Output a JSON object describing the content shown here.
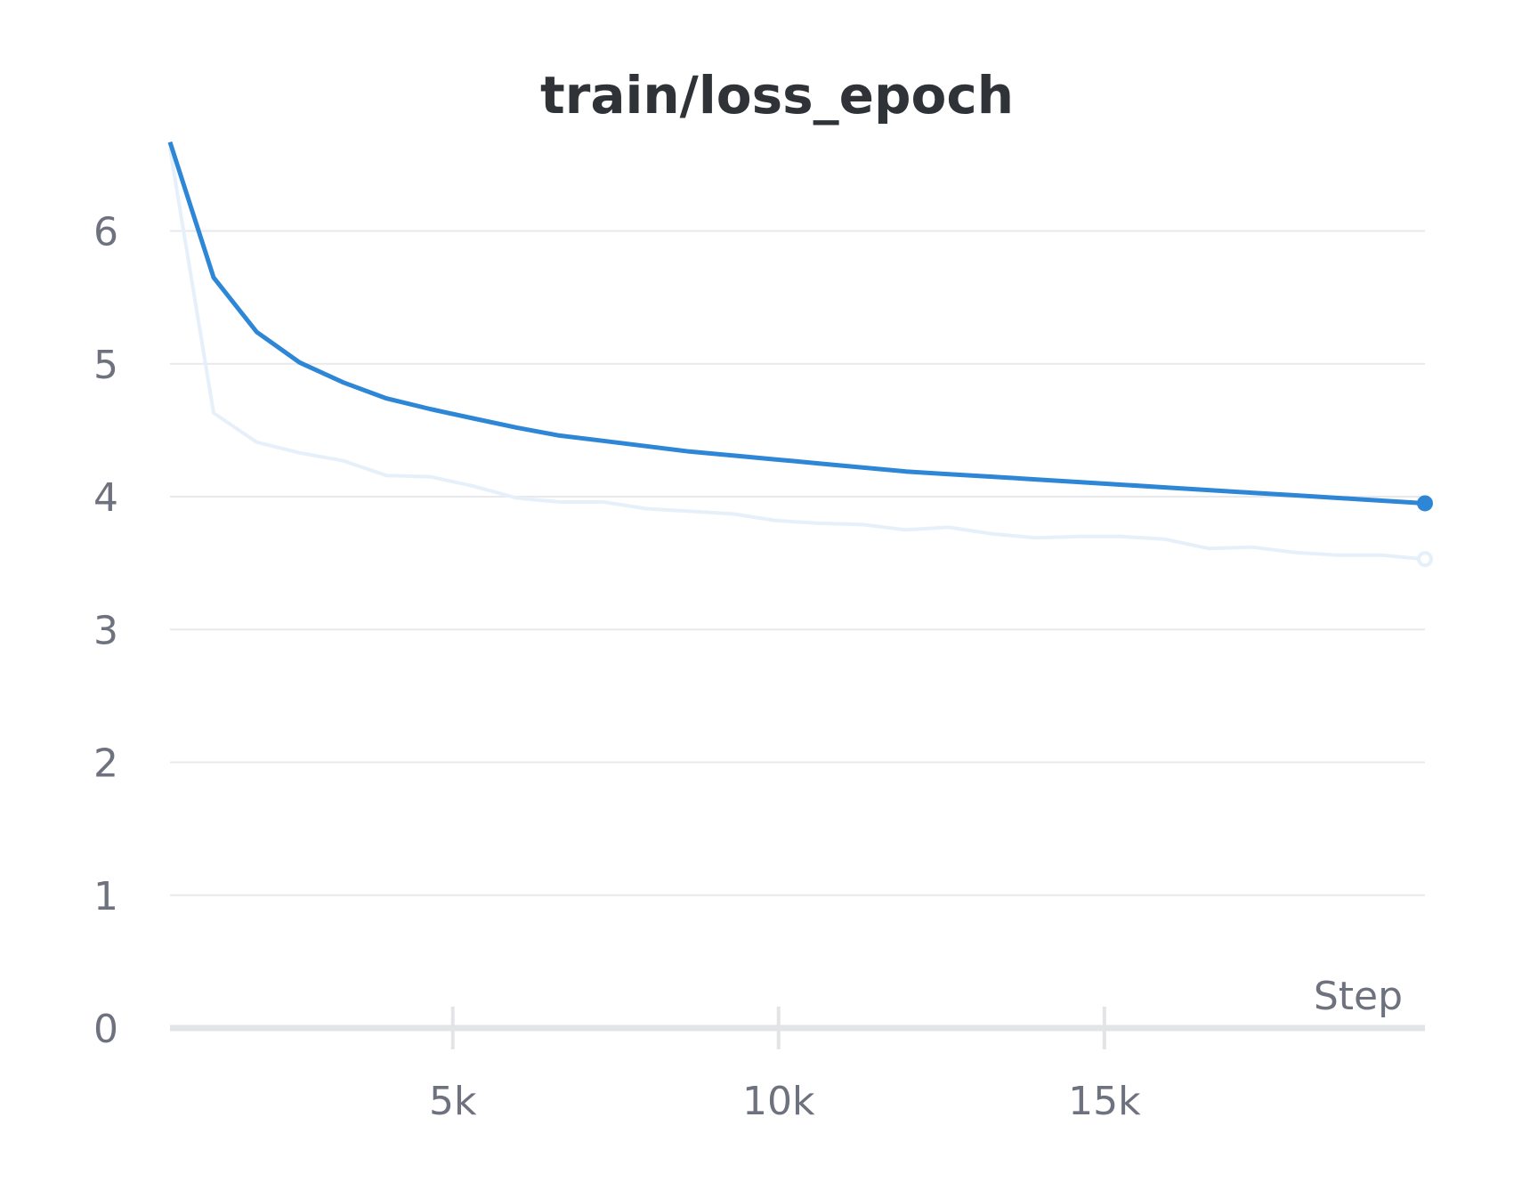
{
  "chart_data": {
    "type": "line",
    "title": "train/loss_epoch",
    "xlabel": "Step",
    "ylabel": "",
    "xlim": [
      660,
      19920
    ],
    "ylim": [
      0,
      6.6
    ],
    "x_ticks": [
      {
        "value": 5000,
        "label": "5k"
      },
      {
        "value": 10000,
        "label": "10k"
      },
      {
        "value": 15000,
        "label": "15k"
      }
    ],
    "y_ticks": [
      {
        "value": 0,
        "label": "0"
      },
      {
        "value": 1,
        "label": "1"
      },
      {
        "value": 2,
        "label": "2"
      },
      {
        "value": 3,
        "label": "3"
      },
      {
        "value": 4,
        "label": "4"
      },
      {
        "value": 5,
        "label": "5"
      },
      {
        "value": 6,
        "label": "6"
      }
    ],
    "grid": true,
    "colors": {
      "smoothed": "#2e86d6",
      "raw": "#e6f0fa",
      "grid": "#e8e9ec",
      "axis": "#e3e4e6",
      "text": "#6e717e",
      "title": "#2f3338"
    },
    "series": [
      {
        "role": "raw",
        "x": [
          660,
          1330,
          1990,
          2650,
          3320,
          3980,
          4650,
          5310,
          5980,
          6640,
          7310,
          7970,
          8630,
          9300,
          9960,
          10620,
          11290,
          11950,
          12610,
          13280,
          13940,
          14610,
          15270,
          15930,
          16600,
          17260,
          17930,
          18590,
          19260,
          19920
        ],
        "y": [
          6.62,
          4.63,
          4.41,
          4.33,
          4.27,
          4.16,
          4.15,
          4.08,
          3.99,
          3.96,
          3.96,
          3.91,
          3.89,
          3.87,
          3.82,
          3.8,
          3.79,
          3.75,
          3.77,
          3.72,
          3.69,
          3.7,
          3.7,
          3.68,
          3.61,
          3.62,
          3.58,
          3.56,
          3.56,
          3.53
        ]
      },
      {
        "role": "smoothed",
        "x": [
          660,
          1330,
          1990,
          2650,
          3320,
          3980,
          4650,
          5310,
          5980,
          6640,
          7310,
          7970,
          8630,
          9300,
          9960,
          10620,
          11290,
          11950,
          12610,
          13280,
          13940,
          14610,
          15270,
          15930,
          16600,
          17260,
          17930,
          18590,
          19260,
          19920
        ],
        "y": [
          6.67,
          5.65,
          5.24,
          5.01,
          4.86,
          4.74,
          4.66,
          4.59,
          4.52,
          4.46,
          4.42,
          4.38,
          4.34,
          4.31,
          4.28,
          4.25,
          4.22,
          4.19,
          4.17,
          4.15,
          4.13,
          4.11,
          4.09,
          4.07,
          4.05,
          4.03,
          4.01,
          3.99,
          3.97,
          3.95
        ]
      }
    ]
  }
}
